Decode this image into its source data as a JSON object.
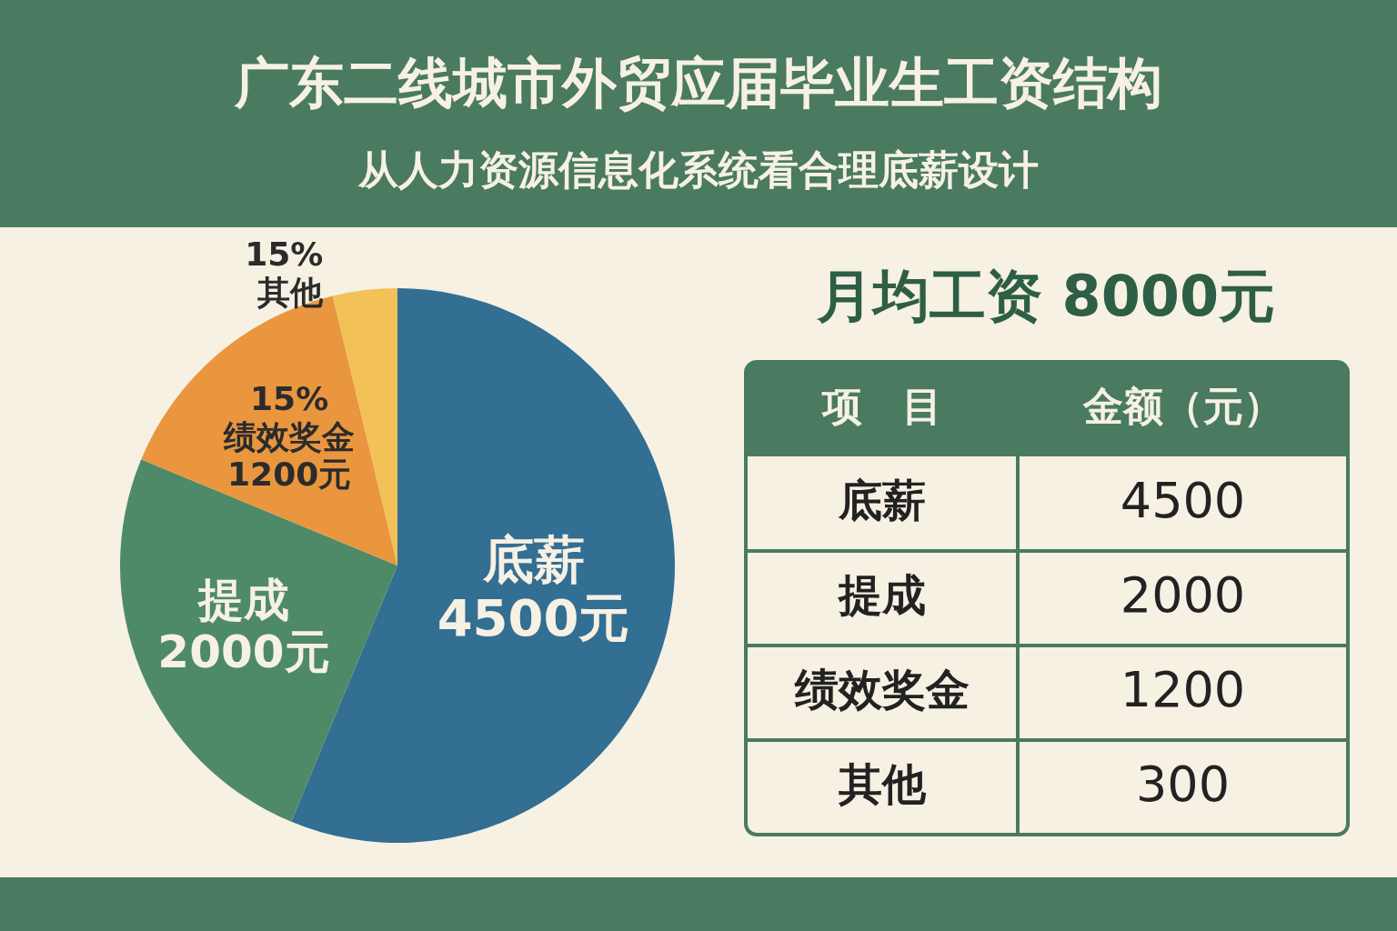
{
  "chart_data": [
    {
      "type": "pie",
      "title": "广东二线城市外贸应届毕业生工资结构",
      "subtitle": "从人力资源信息化系统看合理底薪设计",
      "categories": [
        "底薪",
        "提成",
        "绩效奖金",
        "其他"
      ],
      "values": [
        4500,
        2000,
        1200,
        300
      ],
      "colors": [
        "#336e93",
        "#4e8a68",
        "#e9963f",
        "#f2c157"
      ],
      "value_labels": [
        "4500元",
        "2000元",
        "1200元",
        null
      ],
      "annotations": [
        {
          "text": "15%",
          "x": "绩效奖金"
        },
        {
          "text": "15%",
          "x": "其他"
        }
      ]
    },
    {
      "type": "other",
      "title": "月均工资 8000元",
      "categories": [
        "底薪",
        "提成",
        "绩效奖金",
        "其他"
      ],
      "values": [
        4500,
        2000,
        1200,
        300
      ],
      "data_labels": true,
      "annotations": [
        "项　目",
        "金额（元）"
      ]
    }
  ]
}
